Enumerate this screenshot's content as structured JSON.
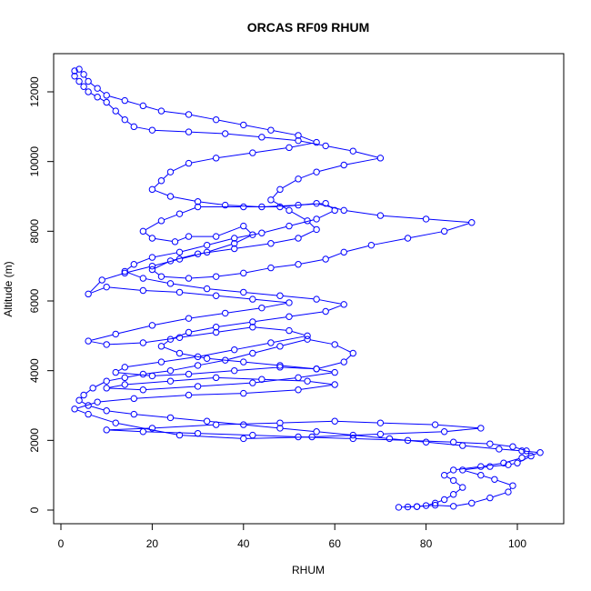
{
  "chart_data": {
    "type": "line",
    "title": "ORCAS RF09 RHUM",
    "xlabel": "RHUM",
    "ylabel": "Altitude (m)",
    "xlim": [
      0,
      110
    ],
    "ylim": [
      -500,
      13000
    ],
    "x_ticks": [
      0,
      20,
      40,
      60,
      80,
      100
    ],
    "y_ticks": [
      0,
      2000,
      4000,
      6000,
      8000,
      10000,
      12000
    ],
    "grid": false,
    "legend": "none",
    "colors": {
      "series": "#0000ff",
      "axis": "#000000"
    },
    "marker": "open-circle",
    "series": [
      {
        "values": [
          [
            74,
            80
          ],
          [
            78,
            100
          ],
          [
            82,
            140
          ],
          [
            86,
            110
          ],
          [
            90,
            200
          ],
          [
            94,
            350
          ],
          [
            98,
            520
          ],
          [
            99,
            700
          ],
          [
            95,
            880
          ],
          [
            92,
            1000
          ],
          [
            88,
            1150
          ],
          [
            94,
            1250
          ],
          [
            98,
            1300
          ],
          [
            100,
            1350
          ],
          [
            103,
            1550
          ],
          [
            102,
            1700
          ],
          [
            99,
            1820
          ],
          [
            94,
            1900
          ],
          [
            86,
            1950
          ],
          [
            76,
            2000
          ],
          [
            64,
            2050
          ],
          [
            52,
            2100
          ],
          [
            42,
            2150
          ],
          [
            30,
            2200
          ],
          [
            18,
            2250
          ],
          [
            10,
            2300
          ],
          [
            20,
            2350
          ],
          [
            34,
            2450
          ],
          [
            48,
            2500
          ],
          [
            60,
            2550
          ],
          [
            70,
            2500
          ],
          [
            82,
            2450
          ],
          [
            92,
            2350
          ],
          [
            84,
            2250
          ],
          [
            70,
            2180
          ],
          [
            55,
            2100
          ],
          [
            40,
            2050
          ],
          [
            26,
            2150
          ],
          [
            12,
            2500
          ],
          [
            6,
            2750
          ],
          [
            3,
            2900
          ],
          [
            8,
            3100
          ],
          [
            16,
            3200
          ],
          [
            28,
            3300
          ],
          [
            40,
            3350
          ],
          [
            52,
            3450
          ],
          [
            60,
            3600
          ],
          [
            54,
            3700
          ],
          [
            44,
            3750
          ],
          [
            34,
            3800
          ],
          [
            24,
            3700
          ],
          [
            14,
            3600
          ],
          [
            10,
            3500
          ],
          [
            18,
            3450
          ],
          [
            30,
            3550
          ],
          [
            42,
            3650
          ],
          [
            52,
            3800
          ],
          [
            60,
            3950
          ],
          [
            56,
            4050
          ],
          [
            48,
            4100
          ],
          [
            38,
            4000
          ],
          [
            28,
            3900
          ],
          [
            20,
            3850
          ],
          [
            12,
            3950
          ],
          [
            14,
            4100
          ],
          [
            22,
            4250
          ],
          [
            30,
            4400
          ],
          [
            38,
            4600
          ],
          [
            46,
            4800
          ],
          [
            54,
            5000
          ],
          [
            50,
            5150
          ],
          [
            42,
            5250
          ],
          [
            34,
            5100
          ],
          [
            26,
            4950
          ],
          [
            18,
            4800
          ],
          [
            10,
            4750
          ],
          [
            6,
            4850
          ],
          [
            12,
            5050
          ],
          [
            20,
            5300
          ],
          [
            28,
            5500
          ],
          [
            36,
            5650
          ],
          [
            44,
            5800
          ],
          [
            50,
            5950
          ],
          [
            42,
            6050
          ],
          [
            34,
            6150
          ],
          [
            26,
            6250
          ],
          [
            18,
            6300
          ],
          [
            10,
            6400
          ],
          [
            6,
            6200
          ],
          [
            9,
            6600
          ],
          [
            14,
            6800
          ],
          [
            20,
            7000
          ],
          [
            26,
            7200
          ],
          [
            32,
            7400
          ],
          [
            38,
            7650
          ],
          [
            42,
            7900
          ],
          [
            40,
            8150
          ],
          [
            34,
            7850
          ],
          [
            28,
            7850
          ],
          [
            25,
            7700
          ],
          [
            20,
            7800
          ],
          [
            18,
            8000
          ],
          [
            22,
            8300
          ],
          [
            26,
            8500
          ],
          [
            30,
            8700
          ],
          [
            40,
            8700
          ],
          [
            48,
            8700
          ],
          [
            56,
            8800
          ],
          [
            62,
            8600
          ],
          [
            70,
            8450
          ],
          [
            80,
            8350
          ],
          [
            90,
            8250
          ],
          [
            84,
            8000
          ],
          [
            76,
            7800
          ],
          [
            68,
            7600
          ],
          [
            62,
            7400
          ],
          [
            58,
            7200
          ],
          [
            52,
            7050
          ],
          [
            46,
            6950
          ],
          [
            40,
            6800
          ],
          [
            34,
            6700
          ],
          [
            28,
            6650
          ],
          [
            22,
            6700
          ],
          [
            20,
            6900
          ],
          [
            24,
            7150
          ],
          [
            30,
            7350
          ],
          [
            38,
            7500
          ],
          [
            46,
            7650
          ],
          [
            52,
            7800
          ],
          [
            56,
            8050
          ],
          [
            54,
            8300
          ],
          [
            50,
            8600
          ],
          [
            46,
            8900
          ],
          [
            48,
            9200
          ],
          [
            52,
            9500
          ],
          [
            56,
            9700
          ],
          [
            62,
            9900
          ],
          [
            70,
            10100
          ],
          [
            64,
            10300
          ],
          [
            58,
            10450
          ],
          [
            52,
            10600
          ],
          [
            44,
            10700
          ],
          [
            36,
            10800
          ],
          [
            28,
            10850
          ],
          [
            20,
            10900
          ],
          [
            16,
            11000
          ],
          [
            14,
            11200
          ],
          [
            12,
            11450
          ],
          [
            10,
            11700
          ],
          [
            8,
            11850
          ],
          [
            6,
            12000
          ],
          [
            5,
            12150
          ],
          [
            4,
            12300
          ],
          [
            3,
            12450
          ],
          [
            3,
            12600
          ],
          [
            4,
            12650
          ],
          [
            5,
            12500
          ],
          [
            6,
            12300
          ],
          [
            8,
            12100
          ],
          [
            10,
            11900
          ],
          [
            14,
            11750
          ],
          [
            18,
            11600
          ],
          [
            22,
            11450
          ],
          [
            28,
            11350
          ],
          [
            34,
            11200
          ],
          [
            40,
            11050
          ],
          [
            46,
            10900
          ],
          [
            52,
            10750
          ],
          [
            56,
            10550
          ],
          [
            50,
            10400
          ],
          [
            42,
            10250
          ],
          [
            34,
            10100
          ],
          [
            28,
            9950
          ],
          [
            24,
            9700
          ],
          [
            22,
            9450
          ],
          [
            20,
            9200
          ],
          [
            24,
            9000
          ],
          [
            30,
            8850
          ],
          [
            36,
            8750
          ],
          [
            44,
            8700
          ],
          [
            52,
            8750
          ],
          [
            58,
            8800
          ],
          [
            60,
            8600
          ],
          [
            56,
            8350
          ],
          [
            50,
            8150
          ],
          [
            44,
            7950
          ],
          [
            38,
            7800
          ],
          [
            32,
            7600
          ],
          [
            26,
            7400
          ],
          [
            20,
            7250
          ],
          [
            16,
            7050
          ],
          [
            14,
            6850
          ],
          [
            18,
            6650
          ],
          [
            24,
            6500
          ],
          [
            32,
            6350
          ],
          [
            40,
            6250
          ],
          [
            48,
            6150
          ],
          [
            56,
            6050
          ],
          [
            62,
            5900
          ],
          [
            58,
            5700
          ],
          [
            50,
            5550
          ],
          [
            42,
            5400
          ],
          [
            34,
            5250
          ],
          [
            28,
            5100
          ],
          [
            24,
            4900
          ],
          [
            22,
            4700
          ],
          [
            26,
            4500
          ],
          [
            32,
            4350
          ],
          [
            40,
            4250
          ],
          [
            48,
            4150
          ],
          [
            56,
            4050
          ],
          [
            62,
            4250
          ],
          [
            64,
            4500
          ],
          [
            60,
            4750
          ],
          [
            54,
            4900
          ],
          [
            48,
            4700
          ],
          [
            42,
            4500
          ],
          [
            36,
            4300
          ],
          [
            30,
            4150
          ],
          [
            24,
            4000
          ],
          [
            18,
            3900
          ],
          [
            14,
            3800
          ],
          [
            10,
            3700
          ],
          [
            7,
            3500
          ],
          [
            5,
            3300
          ],
          [
            4,
            3150
          ],
          [
            6,
            3000
          ],
          [
            10,
            2850
          ],
          [
            16,
            2750
          ],
          [
            24,
            2650
          ],
          [
            32,
            2550
          ],
          [
            40,
            2450
          ],
          [
            48,
            2350
          ],
          [
            56,
            2250
          ],
          [
            64,
            2150
          ],
          [
            72,
            2050
          ],
          [
            80,
            1950
          ],
          [
            88,
            1850
          ],
          [
            96,
            1750
          ],
          [
            101,
            1700
          ],
          [
            105,
            1650
          ],
          [
            101,
            1500
          ],
          [
            97,
            1350
          ],
          [
            92,
            1250
          ],
          [
            86,
            1150
          ],
          [
            84,
            1000
          ],
          [
            86,
            850
          ],
          [
            88,
            650
          ],
          [
            86,
            450
          ],
          [
            84,
            300
          ],
          [
            82,
            200
          ],
          [
            80,
            130
          ],
          [
            78,
            100
          ],
          [
            76,
            90
          ]
        ]
      }
    ]
  }
}
